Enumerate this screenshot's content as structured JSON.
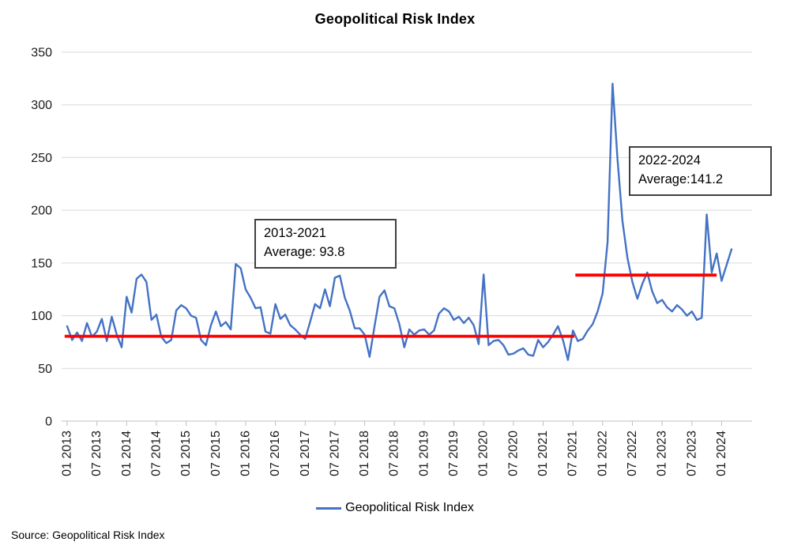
{
  "title": "Geopolitical Risk Index",
  "annotations": {
    "box1": {
      "line1": "2013-2021",
      "line2": "Average: 93.8"
    },
    "box2": {
      "line1": "2022-2024",
      "line2": "Average:141.2"
    }
  },
  "legend": {
    "label": "Geopolitical Risk Index"
  },
  "source": "Source: Geopolitical Risk Index",
  "colors": {
    "series": "#4472C4",
    "average_line": "#FF0000",
    "grid": "#D9D9D9",
    "axis": "#BFBFBF"
  },
  "chart_data": {
    "type": "line",
    "title": "Geopolitical Risk Index",
    "x_unit": "month",
    "x_range": [
      "2013-01",
      "2024-03"
    ],
    "x_tick_labels": [
      "01 2013",
      "07 2013",
      "01 2014",
      "07 2014",
      "01 2015",
      "07 2015",
      "01 2016",
      "07 2016",
      "01 2017",
      "07 2017",
      "01 2018",
      "07 2018",
      "01 2019",
      "07 2019",
      "01 2020",
      "07 2020",
      "01 2021",
      "07 2021",
      "01 2022",
      "07 2022",
      "01 2023",
      "07 2023",
      "01 2024"
    ],
    "x_tick_month_indices": [
      0,
      6,
      12,
      18,
      24,
      30,
      36,
      42,
      48,
      54,
      60,
      66,
      72,
      78,
      84,
      90,
      96,
      102,
      108,
      114,
      120,
      126,
      132
    ],
    "ylim": [
      0,
      350
    ],
    "y_ticks": [
      0,
      50,
      100,
      150,
      200,
      250,
      300,
      350
    ],
    "grid": true,
    "legend_position": "bottom",
    "series": [
      {
        "name": "Geopolitical Risk Index",
        "color": "#4472C4",
        "start": "2013-01",
        "values": [
          90,
          77,
          84,
          76,
          93,
          80,
          85,
          97,
          76,
          99,
          82,
          70,
          118,
          103,
          135,
          139,
          132,
          96,
          101,
          80,
          74,
          77,
          105,
          110,
          107,
          100,
          98,
          77,
          72,
          91,
          104,
          90,
          94,
          87,
          149,
          145,
          125,
          117,
          107,
          108,
          85,
          83,
          111,
          97,
          101,
          91,
          87,
          82,
          78,
          94,
          111,
          107,
          125,
          109,
          136,
          138,
          117,
          105,
          88,
          88,
          82,
          61,
          90,
          118,
          124,
          109,
          107,
          92,
          70,
          87,
          82,
          86,
          87,
          82,
          86,
          102,
          107,
          104,
          96,
          99,
          93,
          98,
          91,
          73,
          139,
          72,
          76,
          77,
          72,
          63,
          64,
          67,
          69,
          63,
          62,
          77,
          70,
          75,
          82,
          90,
          77,
          58,
          86,
          76,
          78,
          86,
          92,
          104,
          121,
          170,
          320,
          249,
          190,
          155,
          132,
          116,
          130,
          141,
          123,
          112,
          115,
          108,
          104,
          110,
          106,
          100,
          104,
          96,
          98,
          196,
          141,
          159,
          133,
          148,
          163
        ]
      }
    ],
    "average_lines": [
      {
        "label": "2013-2021 Average: 93.8",
        "stated_average": 93.8,
        "drawn_level": 80.5,
        "start_month": -0.5,
        "end_month": 102.3,
        "color": "#FF0000"
      },
      {
        "label": "2022-2024 Average:141.2",
        "stated_average": 141.2,
        "drawn_level": 138.5,
        "start_month": 102.5,
        "end_month": 131.0,
        "color": "#FF0000"
      }
    ]
  }
}
